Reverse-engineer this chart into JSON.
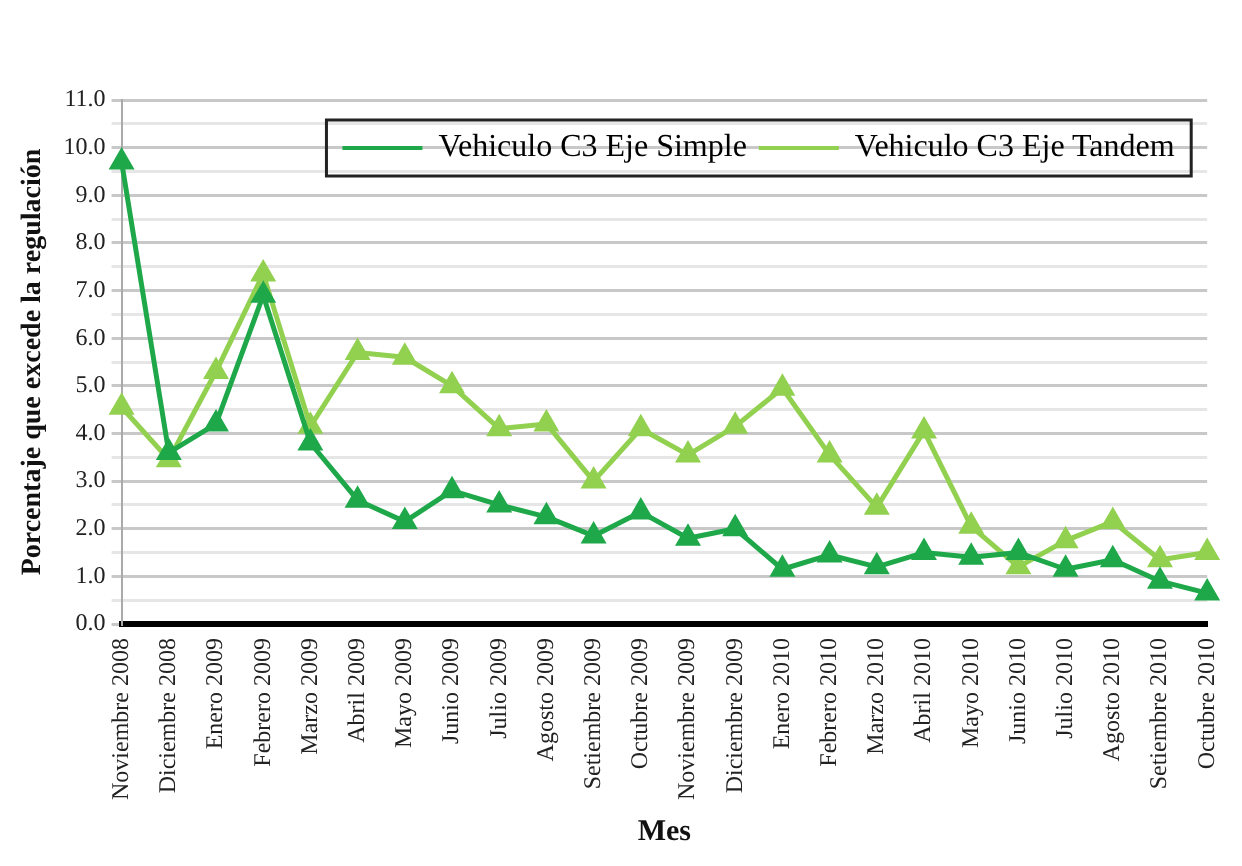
{
  "chart_data": {
    "type": "line",
    "xlabel": "Mes",
    "ylabel": "Porcentaje que excede la regulación",
    "categories": [
      "Noviembre 2008",
      "Diciembre 2008",
      "Enero 2009",
      "Febrero 2009",
      "Marzo 2009",
      "Abril 2009",
      "Mayo 2009",
      "Junio 2009",
      "Julio 2009",
      "Agosto 2009",
      "Setiembre 2009",
      "Octubre 2009",
      "Noviembre 2009",
      "Diciembre 2009",
      "Enero 2010",
      "Febrero 2010",
      "Marzo 2010",
      "Abril 2010",
      "Mayo 2010",
      "Junio 2010",
      "Julio 2010",
      "Agosto 2010",
      "Setiembre 2010",
      "Octubre 2010"
    ],
    "series": [
      {
        "name": "Vehiculo C3 Eje Simple",
        "color": "#1fa84a",
        "values": [
          9.7,
          3.6,
          4.2,
          6.9,
          3.8,
          2.6,
          2.15,
          2.8,
          2.5,
          2.25,
          1.85,
          2.35,
          1.8,
          2.0,
          1.15,
          1.45,
          1.2,
          1.5,
          1.4,
          1.5,
          1.15,
          1.35,
          0.9,
          0.65
        ]
      },
      {
        "name": "Vehiculo C3 Eje Tandem",
        "color": "#92d050",
        "values": [
          4.55,
          3.45,
          5.3,
          7.35,
          4.15,
          5.7,
          5.6,
          5.0,
          4.1,
          4.2,
          3.0,
          4.1,
          3.55,
          4.15,
          4.95,
          3.55,
          2.45,
          4.05,
          2.05,
          1.2,
          1.75,
          2.15,
          1.35,
          1.5
        ]
      }
    ],
    "ylim": [
      0,
      11
    ],
    "yticks": [
      {
        "value": 0,
        "label": "0.0"
      },
      {
        "value": 0.5,
        "label": null
      },
      {
        "value": 1,
        "label": "1.0"
      },
      {
        "value": 1.5,
        "label": null
      },
      {
        "value": 2,
        "label": "2.0"
      },
      {
        "value": 2.5,
        "label": null
      },
      {
        "value": 3,
        "label": "3.0"
      },
      {
        "value": 3.5,
        "label": null
      },
      {
        "value": 4,
        "label": "4.0"
      },
      {
        "value": 4.5,
        "label": null
      },
      {
        "value": 5,
        "label": "5.0"
      },
      {
        "value": 5.5,
        "label": null
      },
      {
        "value": 6,
        "label": "6.0"
      },
      {
        "value": 6.5,
        "label": null
      },
      {
        "value": 7,
        "label": "7.0"
      },
      {
        "value": 7.5,
        "label": null
      },
      {
        "value": 8,
        "label": "8.0"
      },
      {
        "value": 8.5,
        "label": null
      },
      {
        "value": 9,
        "label": "9.0"
      },
      {
        "value": 9.5,
        "label": null
      },
      {
        "value": 10,
        "label": "10.0"
      },
      {
        "value": 10.5,
        "label": null
      },
      {
        "value": 11,
        "label": "11.0"
      }
    ],
    "grid": "y",
    "legend": "top right",
    "marker": "triangle",
    "line_style": "solid"
  }
}
